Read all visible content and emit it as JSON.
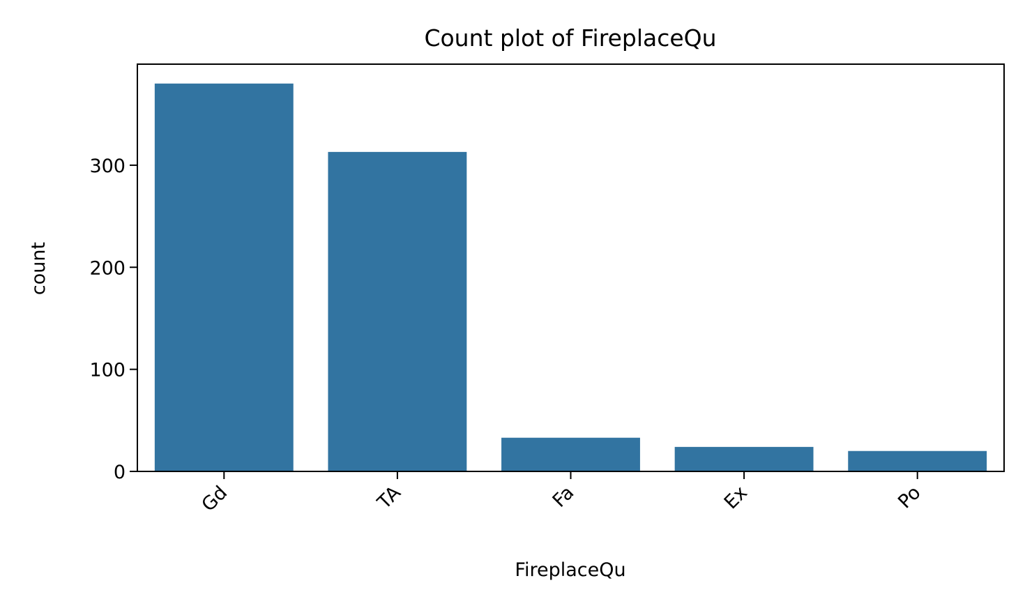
{
  "chart_data": {
    "type": "bar",
    "title": "Count plot of FireplaceQu",
    "xlabel": "FireplaceQu",
    "ylabel": "count",
    "categories": [
      "Gd",
      "TA",
      "Fa",
      "Ex",
      "Po"
    ],
    "values": [
      380,
      313,
      33,
      24,
      20
    ],
    "ylim": [
      0,
      399
    ],
    "yticks": [
      0,
      100,
      200,
      300
    ],
    "bar_color": "#3274a1",
    "grid": false,
    "legend": "none"
  }
}
